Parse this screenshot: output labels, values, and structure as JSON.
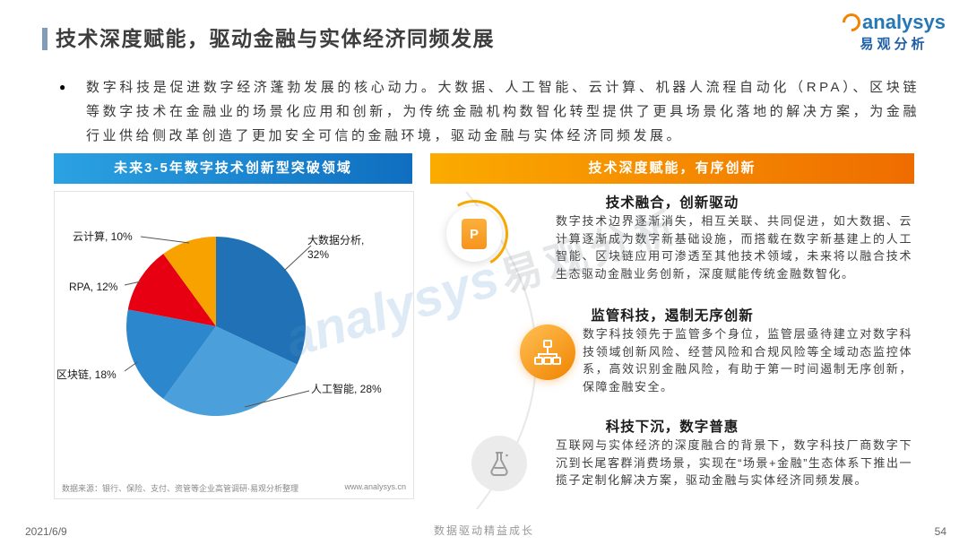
{
  "header": {
    "title": "技术深度赋能，驱动金融与实体经济同频发展",
    "logo": {
      "brand": "analysys",
      "cn": "易观分析"
    }
  },
  "intro": {
    "bullet": "●",
    "text": "数字科技是促进数字经济蓬勃发展的核心动力。大数据、人工智能、云计算、机器人流程自动化（RPA）、区块链等数字技术在金融业的场景化应用和创新，为传统金融机构数智化转型提供了更具场景化落地的解决方案，为金融行业供给侧改革创造了更加安全可信的金融环境，驱动金融与实体经济同频发展。"
  },
  "left_panel": {
    "banner": "未来3-5年数字技术创新型突破领域",
    "source": "数据来源：银行、保险、支付、资管等企业高管调研·易观分析整理",
    "website": "www.analysys.cn"
  },
  "right_panel": {
    "banner": "技术深度赋能，有序创新",
    "sections": [
      {
        "heading": "技术融合，创新驱动",
        "icon": "document-p-icon",
        "icon_letter": "P",
        "body": "数字技术边界逐渐消失，相互关联、共同促进，如大数据、云计算逐渐成为数字新基础设施，而搭载在数字新基建上的人工智能、区块链应用可渗透至其他技术领域，未来将以融合技术生态驱动金融业务创新，深度赋能传统金融数智化。"
      },
      {
        "heading": "监管科技，遏制无序创新",
        "icon": "org-chart-icon",
        "body": "数字科技领先于监管多个身位，监管层亟待建立对数字科技领域创新风险、经营风险和合规风险等全域动态监控体系，高效识别金融风险，有助于第一时间遏制无序创新，保障金融安全。"
      },
      {
        "heading": "科技下沉，数字普惠",
        "icon": "flask-icon",
        "body": "互联网与实体经济的深度融合的背景下，数字科技厂商数字下沉到长尾客群消费场景，实现在“场景+金融”生态体系下推出一揽子定制化解决方案，驱动金融与实体经济同频发展。"
      }
    ]
  },
  "chart_data": {
    "type": "pie",
    "title": "未来3-5年数字技术创新型突破领域",
    "categories": [
      "大数据分析",
      "人工智能",
      "区块链",
      "RPA",
      "云计算"
    ],
    "values": [
      32,
      28,
      18,
      12,
      10
    ],
    "unit": "%",
    "colors": [
      "#2071B5",
      "#4BA0DB",
      "#2D87CC",
      "#E60012",
      "#F8A200"
    ],
    "labels": [
      "大数据分析, 32%",
      "人工智能, 28%",
      "区块链, 18%",
      "RPA, 12%",
      "云计算, 10%"
    ],
    "legend_position": "outside-labels",
    "start_angle": "top-clockwise"
  },
  "footer": {
    "date": "2021/6/9",
    "slogan": "数据驱动精益成长",
    "page": "54"
  },
  "watermark": {
    "brand": "analysys",
    "cn": "易观分析"
  }
}
